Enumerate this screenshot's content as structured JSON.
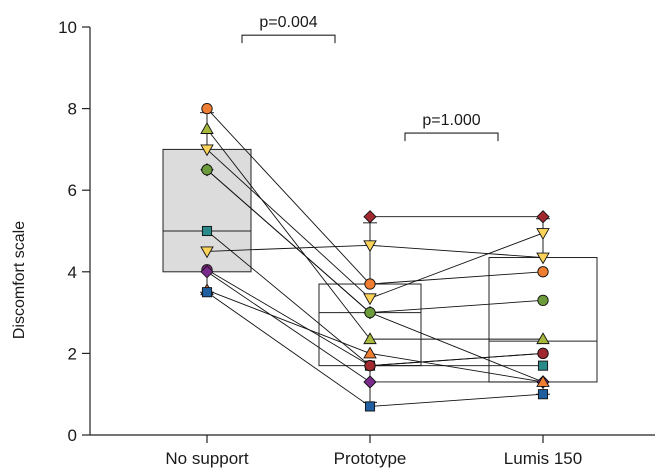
{
  "chart_data": {
    "type": "box",
    "ylabel": "Discomfort scale",
    "ylim": [
      0,
      10
    ],
    "yticks": [
      0,
      2,
      4,
      6,
      8,
      10
    ],
    "categories": [
      "No support",
      "Prototype",
      "Lumis 150"
    ],
    "boxes": [
      {
        "category": "No support",
        "q1": 4.0,
        "median": 5.0,
        "q3": 7.0,
        "whisker_low": 3.5,
        "whisker_high": 7.9,
        "fill": "#dcdcdc"
      },
      {
        "category": "Prototype",
        "q1": 1.7,
        "median": 3.0,
        "q3": 3.7,
        "whisker_low": 0.8,
        "whisker_high": 5.2,
        "fill": "#ffffff"
      },
      {
        "category": "Lumis 150",
        "q1": 1.3,
        "median": 2.3,
        "q3": 4.35,
        "whisker_low": 1.0,
        "whisker_high": 5.3,
        "fill": "#ffffff"
      }
    ],
    "subjects": [
      {
        "marker": "circle",
        "color": "#ef7d32",
        "values": [
          8.0,
          3.7,
          4.0
        ]
      },
      {
        "marker": "triangle-up",
        "color": "#a8b83c",
        "values": [
          7.5,
          2.35,
          2.35
        ]
      },
      {
        "marker": "triangle-down",
        "color": "#fbd35a",
        "values": [
          7.0,
          3.35,
          4.95
        ]
      },
      {
        "marker": "diamond",
        "color": "#6b9b3a",
        "values": [
          6.5,
          3.0,
          1.3
        ]
      },
      {
        "marker": "circle",
        "color": "#6b9b3a",
        "values": [
          6.5,
          3.0,
          3.3
        ]
      },
      {
        "marker": "square",
        "color": "#2a8a8a",
        "values": [
          5.0,
          1.7,
          1.7
        ]
      },
      {
        "marker": "triangle-down",
        "color": "#fbd35a",
        "values": [
          4.5,
          4.65,
          4.35
        ]
      },
      {
        "marker": "circle",
        "color": "#8a2a8a",
        "values": [
          4.05,
          1.7,
          2.0
        ]
      },
      {
        "marker": "diamond",
        "color": "#7a2a8a",
        "values": [
          4.0,
          1.3,
          1.3
        ]
      },
      {
        "marker": "triangle-up",
        "color": "#ef7d32",
        "values": [
          3.55,
          2.0,
          1.3
        ]
      },
      {
        "marker": "square",
        "color": "#1f5f9f",
        "values": [
          3.5,
          0.7,
          1.0
        ]
      },
      {
        "marker": "diamond",
        "color": "#a0282f",
        "values": [
          null,
          5.35,
          5.35
        ]
      },
      {
        "marker": "circle",
        "color": "#a0282f",
        "values": [
          null,
          1.7,
          2.0
        ]
      }
    ],
    "annotations": [
      {
        "label": "p=0.004",
        "from": "No support",
        "to": "Prototype",
        "y": 9.8
      },
      {
        "label": "p=1.000",
        "from": "Prototype",
        "to": "Lumis 150",
        "y": 7.4
      }
    ],
    "grid": false
  }
}
